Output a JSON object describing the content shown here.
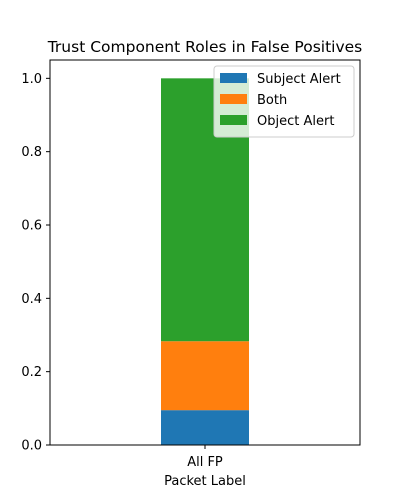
{
  "chart_data": {
    "type": "bar",
    "stacked": true,
    "title": "Trust Component Roles in False Positives",
    "xlabel": "Packet Label",
    "ylabel": "",
    "categories": [
      "All FP"
    ],
    "ylim": [
      0,
      1.05
    ],
    "yticks": [
      0.0,
      0.2,
      0.4,
      0.6,
      0.8,
      1.0
    ],
    "ytick_labels": [
      "0.0",
      "0.2",
      "0.4",
      "0.6",
      "0.8",
      "1.0"
    ],
    "series": [
      {
        "name": "Subject Alert",
        "values": [
          0.095
        ],
        "color": "#1f77b4"
      },
      {
        "name": "Both",
        "values": [
          0.188
        ],
        "color": "#ff7f0e"
      },
      {
        "name": "Object Alert",
        "values": [
          0.717
        ],
        "color": "#2ca02c"
      }
    ],
    "grid": false,
    "legend_position": "top-right"
  }
}
